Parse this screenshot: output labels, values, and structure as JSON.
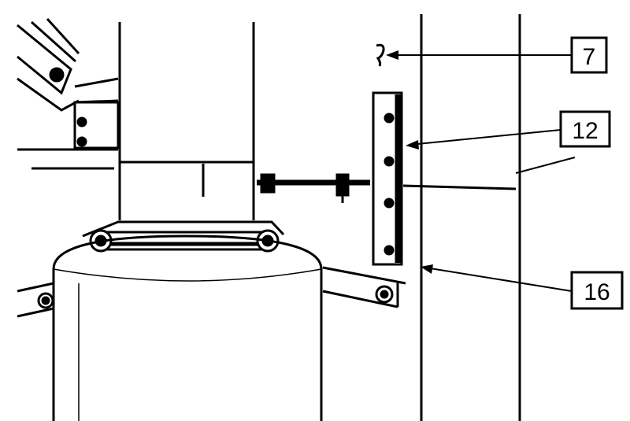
{
  "callouts": [
    {
      "label": "7"
    },
    {
      "label": "12"
    },
    {
      "label": "16"
    }
  ],
  "colors": {
    "ink": "#000000",
    "paper": "#ffffff"
  }
}
